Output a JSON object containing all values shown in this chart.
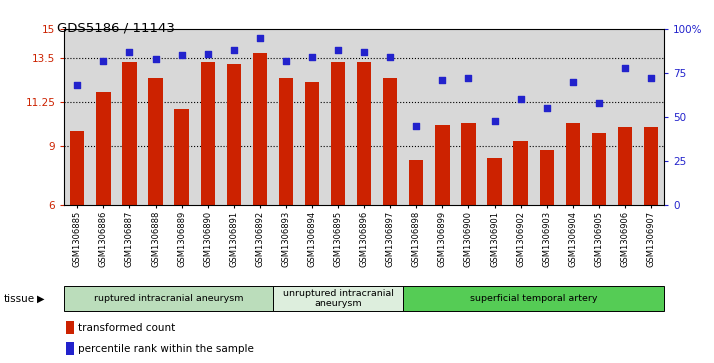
{
  "title": "GDS5186 / 11143",
  "samples": [
    "GSM1306885",
    "GSM1306886",
    "GSM1306887",
    "GSM1306888",
    "GSM1306889",
    "GSM1306890",
    "GSM1306891",
    "GSM1306892",
    "GSM1306893",
    "GSM1306894",
    "GSM1306895",
    "GSM1306896",
    "GSM1306897",
    "GSM1306898",
    "GSM1306899",
    "GSM1306900",
    "GSM1306901",
    "GSM1306902",
    "GSM1306903",
    "GSM1306904",
    "GSM1306905",
    "GSM1306906",
    "GSM1306907"
  ],
  "bar_values": [
    9.8,
    11.8,
    13.3,
    12.5,
    10.9,
    13.3,
    13.2,
    13.8,
    12.5,
    12.3,
    13.3,
    13.3,
    12.5,
    8.3,
    10.1,
    10.2,
    8.4,
    9.3,
    8.8,
    10.2,
    9.7,
    10.0,
    10.0
  ],
  "dot_values": [
    68,
    82,
    87,
    83,
    85,
    86,
    88,
    95,
    82,
    84,
    88,
    87,
    84,
    45,
    71,
    72,
    48,
    60,
    55,
    70,
    58,
    78,
    72
  ],
  "ylim_left": [
    6,
    15
  ],
  "ylim_right": [
    0,
    100
  ],
  "yticks_left": [
    6,
    9,
    11.25,
    13.5,
    15
  ],
  "ytick_labels_left": [
    "6",
    "9",
    "11.25",
    "13.5",
    "15"
  ],
  "yticks_right": [
    0,
    25,
    50,
    75,
    100
  ],
  "ytick_labels_right": [
    "0",
    "25",
    "50",
    "75",
    "100%"
  ],
  "hlines": [
    9,
    11.25,
    13.5
  ],
  "bar_color": "#cc2200",
  "dot_color": "#2222cc",
  "tissue_groups": [
    {
      "label": "ruptured intracranial aneurysm",
      "start": 0,
      "end": 8,
      "color": "#bbddbb"
    },
    {
      "label": "unruptured intracranial\naneurysm",
      "start": 8,
      "end": 13,
      "color": "#ddeedd"
    },
    {
      "label": "superficial temporal artery",
      "start": 13,
      "end": 23,
      "color": "#55cc55"
    }
  ],
  "legend_bar_label": "transformed count",
  "legend_dot_label": "percentile rank within the sample",
  "tissue_label": "tissue",
  "plot_bg": "#d8d8d8",
  "fig_bg": "#ffffff"
}
